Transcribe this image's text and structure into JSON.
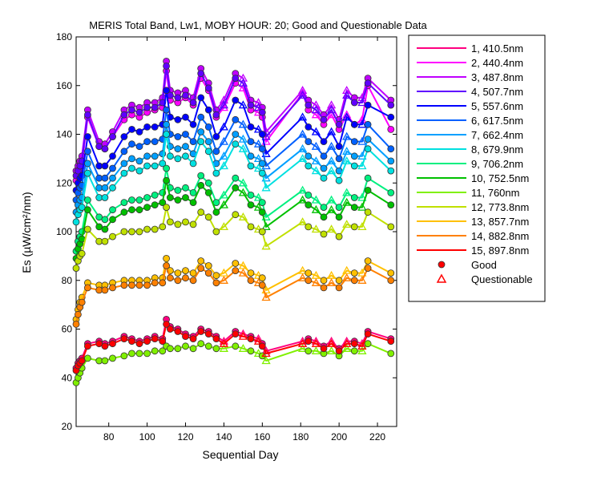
{
  "chart_data": {
    "type": "line",
    "title": "MERIS Total Band,  Lw1, MOBY HOUR: 20;  Good and Questionable Data",
    "xlabel": "Sequential Day",
    "ylabel": "Es (µW/cm²/nm)",
    "xlim": [
      63,
      230
    ],
    "ylim": [
      20,
      180
    ],
    "xticks": [
      80,
      100,
      120,
      140,
      160,
      180,
      200,
      220
    ],
    "yticks": [
      20,
      40,
      60,
      80,
      100,
      120,
      140,
      160,
      180
    ],
    "x": [
      63,
      64,
      65,
      66,
      69,
      75,
      78,
      82,
      88,
      92,
      96,
      100,
      104,
      108,
      110,
      112,
      116,
      120,
      124,
      128,
      132,
      136,
      140,
      146,
      150,
      154,
      158,
      160,
      162,
      181,
      184,
      188,
      192,
      196,
      200,
      204,
      208,
      212,
      215,
      227
    ],
    "series": [
      {
        "name": "1, 410.5nm",
        "color": "#ff0080",
        "values": [
          44,
          46,
          47,
          48,
          54,
          55,
          54,
          55,
          57,
          56,
          55,
          56,
          57,
          56,
          64,
          61,
          60,
          58,
          57,
          60,
          59,
          57,
          55,
          59,
          58,
          57,
          56,
          54,
          51,
          55,
          56,
          55,
          53,
          55,
          52,
          55,
          55,
          54,
          59,
          56
        ]
      },
      {
        "name": "2, 440.4nm",
        "color": "#ff00ff",
        "values": [
          121,
          123,
          125,
          127,
          147,
          135,
          134,
          139,
          146,
          148,
          147,
          149,
          150,
          151,
          166,
          154,
          153,
          155,
          152,
          163,
          158,
          147,
          151,
          161,
          159,
          150,
          149,
          147,
          137,
          157,
          150,
          148,
          144,
          148,
          142,
          148,
          144,
          146,
          160,
          142
        ]
      },
      {
        "name": "3, 487.8nm",
        "color": "#c000ff",
        "values": [
          125,
          127,
          129,
          131,
          150,
          137,
          136,
          141,
          150,
          152,
          151,
          153,
          153,
          155,
          170,
          158,
          157,
          158,
          155,
          167,
          161,
          150,
          154,
          165,
          163,
          154,
          153,
          151,
          141,
          158,
          154,
          152,
          148,
          152,
          146,
          158,
          155,
          155,
          163,
          154
        ]
      },
      {
        "name": "4, 507.7nm",
        "color": "#6000ff",
        "values": [
          123,
          125,
          127,
          129,
          148,
          135,
          134,
          139,
          148,
          150,
          149,
          151,
          151,
          153,
          168,
          156,
          155,
          156,
          153,
          165,
          159,
          148,
          152,
          163,
          161,
          152,
          151,
          149,
          139,
          156,
          152,
          150,
          146,
          150,
          144,
          156,
          153,
          153,
          161,
          152
        ]
      },
      {
        "name": "5, 557.6nm",
        "color": "#0000ff",
        "values": [
          117,
          120,
          122,
          123,
          139,
          127,
          127,
          131,
          139,
          142,
          141,
          143,
          143,
          144,
          158,
          147,
          146,
          147,
          144,
          155,
          150,
          139,
          143,
          154,
          152,
          143,
          142,
          140,
          132,
          147,
          143,
          141,
          137,
          141,
          135,
          147,
          144,
          144,
          152,
          147
        ]
      },
      {
        "name": "6, 617.5nm",
        "color": "#0060ff",
        "values": [
          113,
          116,
          118,
          119,
          133,
          122,
          122,
          126,
          133,
          136,
          135,
          137,
          137,
          138,
          150,
          140,
          139,
          140,
          137,
          147,
          143,
          133,
          137,
          146,
          144,
          137,
          136,
          134,
          127,
          140,
          137,
          135,
          131,
          135,
          130,
          139,
          137,
          137,
          144,
          134
        ]
      },
      {
        "name": "7, 662.4nm",
        "color": "#00a0ff",
        "values": [
          108,
          111,
          113,
          114,
          128,
          118,
          118,
          122,
          128,
          130,
          129,
          131,
          131,
          132,
          144,
          135,
          134,
          135,
          132,
          141,
          137,
          128,
          131,
          140,
          138,
          131,
          130,
          128,
          122,
          134,
          131,
          129,
          126,
          129,
          125,
          133,
          131,
          131,
          138,
          129
        ]
      },
      {
        "name": "8, 679.9nm",
        "color": "#00e0e0",
        "values": [
          104,
          107,
          109,
          110,
          124,
          114,
          114,
          118,
          124,
          126,
          125,
          127,
          127,
          128,
          140,
          131,
          130,
          131,
          128,
          137,
          133,
          124,
          127,
          136,
          134,
          127,
          126,
          124,
          118,
          130,
          127,
          125,
          122,
          125,
          121,
          129,
          127,
          127,
          134,
          125
        ]
      },
      {
        "name": "9, 706.2nm",
        "color": "#00f080",
        "values": [
          92,
          96,
          98,
          100,
          113,
          106,
          105,
          109,
          112,
          113,
          113,
          114,
          115,
          116,
          126,
          118,
          117,
          118,
          116,
          123,
          120,
          112,
          115,
          122,
          120,
          115,
          114,
          112,
          106,
          117,
          115,
          113,
          110,
          113,
          110,
          116,
          114,
          114,
          122,
          116
        ]
      },
      {
        "name": "10, 752.5nm",
        "color": "#00c000",
        "values": [
          89,
          93,
          95,
          97,
          109,
          102,
          101,
          105,
          108,
          109,
          109,
          110,
          111,
          112,
          121,
          114,
          113,
          114,
          112,
          119,
          116,
          108,
          111,
          118,
          116,
          111,
          110,
          108,
          102,
          113,
          111,
          109,
          106,
          109,
          106,
          112,
          110,
          110,
          117,
          111
        ]
      },
      {
        "name": "11,  760nm",
        "color": "#80f000",
        "values": [
          38,
          40,
          42,
          44,
          48,
          47,
          47,
          48,
          49,
          50,
          50,
          50,
          51,
          51,
          53,
          52,
          52,
          53,
          52,
          54,
          53,
          52,
          52,
          53,
          52,
          51,
          50,
          49,
          47,
          52,
          51,
          51,
          50,
          51,
          49,
          52,
          51,
          51,
          54,
          50
        ]
      },
      {
        "name": "12, 773.8nm",
        "color": "#c0e000",
        "values": [
          85,
          88,
          90,
          91,
          101,
          96,
          96,
          98,
          100,
          100,
          100,
          101,
          101,
          102,
          110,
          104,
          103,
          104,
          103,
          108,
          106,
          100,
          102,
          107,
          106,
          102,
          101,
          100,
          94,
          104,
          102,
          101,
          99,
          101,
          98,
          103,
          102,
          102,
          108,
          102
        ]
      },
      {
        "name": "13, 857.7nm",
        "color": "#ffc000",
        "values": [
          64,
          68,
          71,
          73,
          79,
          78,
          78,
          79,
          80,
          80,
          80,
          80,
          81,
          81,
          89,
          84,
          83,
          84,
          83,
          88,
          86,
          82,
          83,
          87,
          86,
          83,
          82,
          81,
          76,
          84,
          83,
          82,
          80,
          82,
          80,
          84,
          83,
          83,
          88,
          83
        ]
      },
      {
        "name": "14, 882.8nm",
        "color": "#ff8000",
        "values": [
          62,
          66,
          69,
          71,
          77,
          76,
          76,
          77,
          78,
          78,
          78,
          78,
          79,
          79,
          86,
          81,
          80,
          81,
          80,
          85,
          83,
          79,
          80,
          84,
          83,
          80,
          79,
          78,
          73,
          81,
          80,
          79,
          77,
          79,
          77,
          81,
          80,
          80,
          85,
          80
        ]
      },
      {
        "name": "15, 897.8nm",
        "color": "#ff0000",
        "values": [
          43,
          45,
          46,
          47,
          53,
          54,
          53,
          54,
          56,
          55,
          54,
          55,
          56,
          55,
          62,
          60,
          59,
          57,
          56,
          59,
          58,
          56,
          54,
          58,
          57,
          56,
          55,
          53,
          50,
          54,
          55,
          54,
          52,
          54,
          51,
          54,
          54,
          53,
          58,
          55
        ]
      }
    ],
    "markers": [
      {
        "label": "Good",
        "shape": "circle"
      },
      {
        "label": "Questionable",
        "shape": "triangle"
      }
    ],
    "legend_position": "outside-right",
    "grid": false
  }
}
